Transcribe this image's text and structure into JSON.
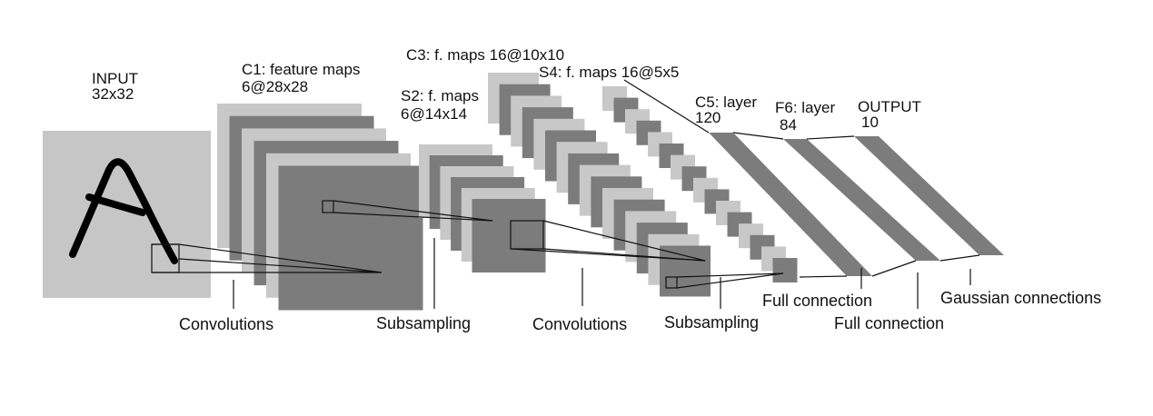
{
  "colors": {
    "light": "#c8c8c8",
    "dark": "#7c7c7c",
    "input_fill": "#c6c6c6",
    "ink": "#111111"
  },
  "layers": {
    "input": {
      "name": "INPUT",
      "size": "32x32",
      "glyph": "A"
    },
    "c1": {
      "name": "C1: feature maps",
      "size": "6@28x28",
      "maps": 6
    },
    "s2": {
      "name": "S2: f. maps",
      "size": "6@14x14",
      "maps": 6
    },
    "c3": {
      "name": "C3: f. maps 16@10x10",
      "maps": 16
    },
    "s4": {
      "name": "S4: f. maps 16@5x5",
      "maps": 16
    },
    "c5": {
      "name": "C5: layer",
      "size": "120"
    },
    "f6": {
      "name": "F6: layer",
      "size": "84"
    },
    "output": {
      "name": "OUTPUT",
      "size": "10"
    }
  },
  "operations": {
    "conv1": "Convolutions",
    "sub1": "Subsampling",
    "conv2": "Convolutions",
    "sub2": "Subsampling",
    "full1": "Full connection",
    "full2": "Full connection",
    "gauss": "Gaussian connections"
  }
}
